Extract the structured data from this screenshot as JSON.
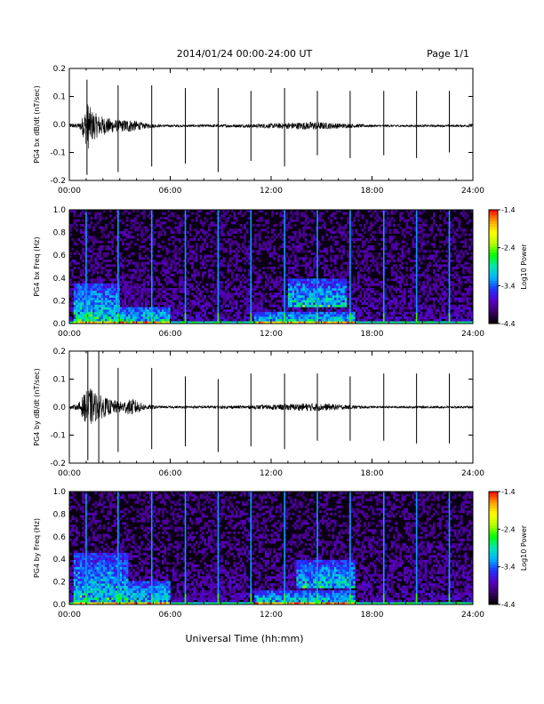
{
  "header": {
    "title": "2014/01/24  00:00-24:00 UT",
    "page": "Page 1/1"
  },
  "footer": {
    "xlabel": "Universal Time (hh:mm)"
  },
  "colors": {
    "trace": "#000000",
    "spectrogram_background": "#0a0012",
    "colormap": [
      "#000000",
      "#3a0060",
      "#5a00c8",
      "#1e32ff",
      "#00b4ff",
      "#00e6b4",
      "#00ff00",
      "#b4ff00",
      "#ffff00",
      "#ffa000",
      "#ff0000"
    ]
  },
  "chart_data": [
    {
      "type": "line",
      "name": "bx-waveform",
      "ylabel": "PG4 bx dB/dt (nT/sec)",
      "xlim": [
        0,
        24
      ],
      "ylim": [
        -0.2,
        0.2
      ],
      "xticks": [
        "00:00",
        "06:00",
        "12:00",
        "18:00",
        "24:00"
      ],
      "yticks": [
        "-0.2",
        "-0.1",
        "0.0",
        "0.1",
        "0.2"
      ],
      "baseline": -0.005,
      "noise_envelope": [
        [
          0.0,
          0.006
        ],
        [
          0.6,
          0.01
        ],
        [
          0.9,
          0.05
        ],
        [
          1.1,
          0.09
        ],
        [
          1.3,
          0.06
        ],
        [
          1.7,
          0.04
        ],
        [
          2.2,
          0.03
        ],
        [
          3.0,
          0.02
        ],
        [
          3.5,
          0.025
        ],
        [
          4.5,
          0.01
        ],
        [
          5.5,
          0.004
        ],
        [
          10.5,
          0.006
        ],
        [
          12.5,
          0.01
        ],
        [
          14.5,
          0.015
        ],
        [
          16.5,
          0.008
        ],
        [
          18.0,
          0.004
        ],
        [
          24.0,
          0.004
        ]
      ],
      "pulses": [
        [
          1.05,
          -0.18,
          0.16
        ],
        [
          2.9,
          -0.17,
          0.14
        ],
        [
          4.9,
          -0.15,
          0.14
        ],
        [
          6.9,
          -0.14,
          0.13
        ],
        [
          8.85,
          -0.17,
          0.13
        ],
        [
          10.8,
          -0.13,
          0.12
        ],
        [
          12.8,
          -0.15,
          0.13
        ],
        [
          14.75,
          -0.11,
          0.12
        ],
        [
          16.7,
          -0.12,
          0.12
        ],
        [
          18.7,
          -0.11,
          0.12
        ],
        [
          20.65,
          -0.12,
          0.12
        ],
        [
          22.6,
          -0.1,
          0.12
        ]
      ]
    },
    {
      "type": "heatmap",
      "name": "bx-spectrogram",
      "ylabel": "PG4 bx Freq (Hz)",
      "xlim": [
        0,
        24
      ],
      "ylim": [
        0,
        1.0
      ],
      "xticks": [
        "00:00",
        "06:00",
        "12:00",
        "18:00",
        "24:00"
      ],
      "yticks": [
        "0.0",
        "0.2",
        "0.4",
        "0.6",
        "0.8",
        "1.0"
      ],
      "colorbar": {
        "label": "Log10 Power",
        "range": [
          -4.4,
          -1.4
        ],
        "ticks": [
          "-1.4",
          "-2.4",
          "-3.4",
          "-4.4"
        ]
      },
      "vertical_lines_hours": [
        1.0,
        2.9,
        4.9,
        6.9,
        8.85,
        10.8,
        12.8,
        14.75,
        16.7,
        18.7,
        20.65,
        22.6
      ],
      "enhanced_regions": [
        [
          0.3,
          3.0,
          0,
          0.35
        ],
        [
          3.0,
          6.0,
          0,
          0.15
        ],
        [
          11.0,
          17.0,
          0,
          0.1
        ],
        [
          13.0,
          16.5,
          0.15,
          0.4
        ]
      ]
    },
    {
      "type": "line",
      "name": "by-waveform",
      "ylabel": "PG4 by dB/dt (nT/sec)",
      "xlim": [
        0,
        24
      ],
      "ylim": [
        -0.2,
        0.2
      ],
      "xticks": [
        "00:00",
        "06:00",
        "12:00",
        "18:00",
        "24:00"
      ],
      "yticks": [
        "-0.2",
        "-0.1",
        "0.0",
        "0.1",
        "0.2"
      ],
      "baseline": 0.0,
      "noise_envelope": [
        [
          0.0,
          0.006
        ],
        [
          0.5,
          0.01
        ],
        [
          0.9,
          0.05
        ],
        [
          1.2,
          0.07
        ],
        [
          1.6,
          0.05
        ],
        [
          2.3,
          0.03
        ],
        [
          3.0,
          0.02
        ],
        [
          3.8,
          0.03
        ],
        [
          4.5,
          0.01
        ],
        [
          5.5,
          0.004
        ],
        [
          10.5,
          0.006
        ],
        [
          12.5,
          0.01
        ],
        [
          14.5,
          0.015
        ],
        [
          16.5,
          0.008
        ],
        [
          18.0,
          0.004
        ],
        [
          24.0,
          0.004
        ]
      ],
      "pulses": [
        [
          1.1,
          -0.19,
          0.2
        ],
        [
          1.75,
          -0.2,
          0.2
        ],
        [
          2.9,
          -0.16,
          0.14
        ],
        [
          4.9,
          -0.15,
          0.14
        ],
        [
          6.9,
          -0.14,
          0.11
        ],
        [
          8.85,
          -0.16,
          0.1
        ],
        [
          10.8,
          -0.14,
          0.12
        ],
        [
          12.8,
          -0.15,
          0.12
        ],
        [
          14.75,
          -0.12,
          0.12
        ],
        [
          16.7,
          -0.12,
          0.11
        ],
        [
          18.7,
          -0.12,
          0.12
        ],
        [
          20.65,
          -0.13,
          0.12
        ],
        [
          22.6,
          -0.13,
          0.12
        ]
      ]
    },
    {
      "type": "heatmap",
      "name": "by-spectrogram",
      "ylabel": "PG4 by Freq (Hz)",
      "xlim": [
        0,
        24
      ],
      "ylim": [
        0,
        1.0
      ],
      "xticks": [
        "00:00",
        "06:00",
        "12:00",
        "18:00",
        "24:00"
      ],
      "yticks": [
        "0.0",
        "0.2",
        "0.4",
        "0.6",
        "0.8",
        "1.0"
      ],
      "colorbar": {
        "label": "Log10 Power",
        "range": [
          -4.4,
          -1.4
        ],
        "ticks": [
          "-1.4",
          "-2.4",
          "-3.4",
          "-4.4"
        ]
      },
      "vertical_lines_hours": [
        1.0,
        2.9,
        4.9,
        6.9,
        8.85,
        10.8,
        12.8,
        14.75,
        16.7,
        18.7,
        20.65,
        22.6
      ],
      "enhanced_regions": [
        [
          0.3,
          3.5,
          0,
          0.45
        ],
        [
          3.5,
          6.0,
          0,
          0.2
        ],
        [
          11.0,
          17.0,
          0,
          0.12
        ],
        [
          13.5,
          17.0,
          0.15,
          0.4
        ]
      ]
    }
  ]
}
